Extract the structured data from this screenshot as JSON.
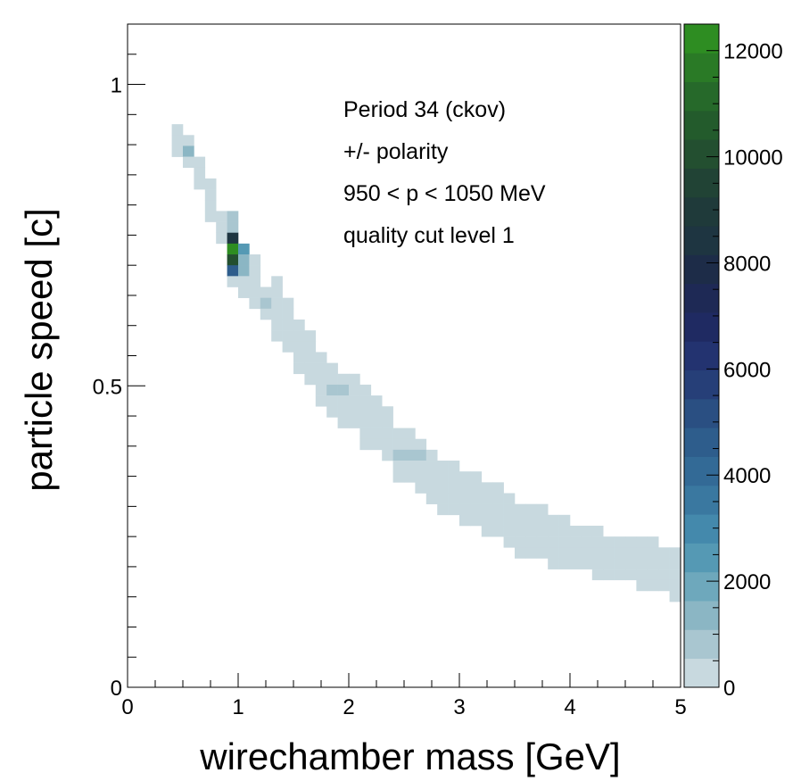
{
  "chart_data": {
    "type": "heatmap",
    "xlabel": "wirechamber mass [GeV]",
    "ylabel": "particle speed [c]",
    "xlim": [
      0,
      5
    ],
    "ylim": [
      0,
      1.1
    ],
    "x_ticks": [
      "0",
      "1",
      "2",
      "3",
      "4",
      "5"
    ],
    "y_ticks": [
      "0",
      "0.5",
      "1"
    ],
    "colorbar": {
      "range": [
        0,
        12500
      ],
      "ticks": [
        "0",
        "2000",
        "4000",
        "6000",
        "8000",
        "10000",
        "12000"
      ],
      "colors": [
        "#c8d9df",
        "#a9c6d0",
        "#8bb6c4",
        "#6ea8bc",
        "#5599b4",
        "#4489ac",
        "#3a78a0",
        "#336a96",
        "#2e5d8c",
        "#2a4f82",
        "#263f78",
        "#233370",
        "#1f2a62",
        "#1e2955",
        "#1d2c48",
        "#1e3541",
        "#1f3a3a",
        "#214335",
        "#234f30",
        "#235b2c",
        "#26692a",
        "#2a7a26",
        "#2e8d22"
      ]
    },
    "annotations": [
      "Period 34 (ckov)",
      "+/- polarity",
      "950 < p < 1050 MeV",
      "quality cut level 1"
    ],
    "bin_size": {
      "mass_GeV": 0.1,
      "speed_c": 0.018
    },
    "bins": [
      {
        "x": 0.45,
        "y": 0.925,
        "v": 250
      },
      {
        "x": 0.45,
        "y": 0.907,
        "v": 250
      },
      {
        "x": 0.45,
        "y": 0.889,
        "v": 250
      },
      {
        "x": 0.55,
        "y": 0.907,
        "v": 250
      },
      {
        "x": 0.55,
        "y": 0.889,
        "v": 1200
      },
      {
        "x": 0.55,
        "y": 0.871,
        "v": 250
      },
      {
        "x": 0.65,
        "y": 0.871,
        "v": 250
      },
      {
        "x": 0.65,
        "y": 0.853,
        "v": 250
      },
      {
        "x": 0.65,
        "y": 0.835,
        "v": 250
      },
      {
        "x": 0.75,
        "y": 0.835,
        "v": 250
      },
      {
        "x": 0.75,
        "y": 0.817,
        "v": 250
      },
      {
        "x": 0.75,
        "y": 0.799,
        "v": 250
      },
      {
        "x": 0.75,
        "y": 0.781,
        "v": 250
      },
      {
        "x": 0.85,
        "y": 0.781,
        "v": 250
      },
      {
        "x": 0.85,
        "y": 0.763,
        "v": 250
      },
      {
        "x": 0.85,
        "y": 0.745,
        "v": 250
      },
      {
        "x": 0.95,
        "y": 0.781,
        "v": 900
      },
      {
        "x": 0.95,
        "y": 0.763,
        "v": 900
      },
      {
        "x": 0.95,
        "y": 0.745,
        "v": 8600
      },
      {
        "x": 0.95,
        "y": 0.727,
        "v": 12400
      },
      {
        "x": 0.95,
        "y": 0.709,
        "v": 10300
      },
      {
        "x": 0.95,
        "y": 0.691,
        "v": 4500
      },
      {
        "x": 0.95,
        "y": 0.673,
        "v": 250
      },
      {
        "x": 1.05,
        "y": 0.727,
        "v": 2200
      },
      {
        "x": 1.05,
        "y": 0.709,
        "v": 1200
      },
      {
        "x": 1.05,
        "y": 0.691,
        "v": 1200
      },
      {
        "x": 1.05,
        "y": 0.673,
        "v": 250
      },
      {
        "x": 1.05,
        "y": 0.655,
        "v": 250
      },
      {
        "x": 1.15,
        "y": 0.709,
        "v": 250
      },
      {
        "x": 1.15,
        "y": 0.691,
        "v": 250
      },
      {
        "x": 1.15,
        "y": 0.673,
        "v": 250
      },
      {
        "x": 1.15,
        "y": 0.655,
        "v": 250
      },
      {
        "x": 1.15,
        "y": 0.637,
        "v": 250
      },
      {
        "x": 1.25,
        "y": 0.655,
        "v": 250
      },
      {
        "x": 1.25,
        "y": 0.637,
        "v": 900
      },
      {
        "x": 1.25,
        "y": 0.619,
        "v": 250
      },
      {
        "x": 1.35,
        "y": 0.673,
        "v": 250
      },
      {
        "x": 1.35,
        "y": 0.655,
        "v": 250
      },
      {
        "x": 1.35,
        "y": 0.637,
        "v": 250
      },
      {
        "x": 1.35,
        "y": 0.619,
        "v": 250
      },
      {
        "x": 1.35,
        "y": 0.601,
        "v": 250
      },
      {
        "x": 1.35,
        "y": 0.583,
        "v": 250
      },
      {
        "x": 1.45,
        "y": 0.637,
        "v": 250
      },
      {
        "x": 1.45,
        "y": 0.619,
        "v": 250
      },
      {
        "x": 1.45,
        "y": 0.601,
        "v": 250
      },
      {
        "x": 1.45,
        "y": 0.583,
        "v": 250
      },
      {
        "x": 1.45,
        "y": 0.565,
        "v": 250
      },
      {
        "x": 1.55,
        "y": 0.601,
        "v": 250
      },
      {
        "x": 1.55,
        "y": 0.583,
        "v": 250
      },
      {
        "x": 1.55,
        "y": 0.565,
        "v": 250
      },
      {
        "x": 1.55,
        "y": 0.547,
        "v": 250
      },
      {
        "x": 1.55,
        "y": 0.529,
        "v": 250
      },
      {
        "x": 1.65,
        "y": 0.583,
        "v": 250
      },
      {
        "x": 1.65,
        "y": 0.565,
        "v": 250
      },
      {
        "x": 1.65,
        "y": 0.547,
        "v": 250
      },
      {
        "x": 1.65,
        "y": 0.529,
        "v": 250
      },
      {
        "x": 1.65,
        "y": 0.511,
        "v": 250
      },
      {
        "x": 1.75,
        "y": 0.547,
        "v": 250
      },
      {
        "x": 1.75,
        "y": 0.529,
        "v": 250
      },
      {
        "x": 1.75,
        "y": 0.511,
        "v": 250
      },
      {
        "x": 1.75,
        "y": 0.493,
        "v": 250
      },
      {
        "x": 1.75,
        "y": 0.475,
        "v": 250
      },
      {
        "x": 1.85,
        "y": 0.529,
        "v": 250
      },
      {
        "x": 1.85,
        "y": 0.511,
        "v": 250
      },
      {
        "x": 1.85,
        "y": 0.493,
        "v": 900
      },
      {
        "x": 1.85,
        "y": 0.475,
        "v": 250
      },
      {
        "x": 1.85,
        "y": 0.457,
        "v": 250
      },
      {
        "x": 1.95,
        "y": 0.511,
        "v": 250
      },
      {
        "x": 1.95,
        "y": 0.493,
        "v": 900
      },
      {
        "x": 1.95,
        "y": 0.475,
        "v": 250
      },
      {
        "x": 1.95,
        "y": 0.457,
        "v": 250
      },
      {
        "x": 1.95,
        "y": 0.439,
        "v": 250
      },
      {
        "x": 2.05,
        "y": 0.511,
        "v": 250
      },
      {
        "x": 2.05,
        "y": 0.493,
        "v": 250
      },
      {
        "x": 2.05,
        "y": 0.475,
        "v": 250
      },
      {
        "x": 2.05,
        "y": 0.457,
        "v": 250
      },
      {
        "x": 2.05,
        "y": 0.439,
        "v": 250
      },
      {
        "x": 2.15,
        "y": 0.493,
        "v": 250
      },
      {
        "x": 2.15,
        "y": 0.475,
        "v": 250
      },
      {
        "x": 2.15,
        "y": 0.457,
        "v": 250
      },
      {
        "x": 2.15,
        "y": 0.439,
        "v": 250
      },
      {
        "x": 2.15,
        "y": 0.421,
        "v": 250
      },
      {
        "x": 2.15,
        "y": 0.403,
        "v": 250
      },
      {
        "x": 2.25,
        "y": 0.475,
        "v": 250
      },
      {
        "x": 2.25,
        "y": 0.457,
        "v": 250
      },
      {
        "x": 2.25,
        "y": 0.439,
        "v": 250
      },
      {
        "x": 2.25,
        "y": 0.421,
        "v": 250
      },
      {
        "x": 2.25,
        "y": 0.403,
        "v": 250
      },
      {
        "x": 2.35,
        "y": 0.457,
        "v": 250
      },
      {
        "x": 2.35,
        "y": 0.439,
        "v": 250
      },
      {
        "x": 2.35,
        "y": 0.421,
        "v": 250
      },
      {
        "x": 2.35,
        "y": 0.403,
        "v": 250
      },
      {
        "x": 2.35,
        "y": 0.385,
        "v": 250
      },
      {
        "x": 2.45,
        "y": 0.421,
        "v": 250
      },
      {
        "x": 2.45,
        "y": 0.403,
        "v": 250
      },
      {
        "x": 2.45,
        "y": 0.385,
        "v": 900
      },
      {
        "x": 2.45,
        "y": 0.367,
        "v": 250
      },
      {
        "x": 2.45,
        "y": 0.349,
        "v": 250
      },
      {
        "x": 2.55,
        "y": 0.421,
        "v": 250
      },
      {
        "x": 2.55,
        "y": 0.403,
        "v": 250
      },
      {
        "x": 2.55,
        "y": 0.385,
        "v": 900
      },
      {
        "x": 2.55,
        "y": 0.367,
        "v": 250
      },
      {
        "x": 2.55,
        "y": 0.349,
        "v": 250
      },
      {
        "x": 2.65,
        "y": 0.403,
        "v": 250
      },
      {
        "x": 2.65,
        "y": 0.385,
        "v": 900
      },
      {
        "x": 2.65,
        "y": 0.367,
        "v": 250
      },
      {
        "x": 2.65,
        "y": 0.349,
        "v": 250
      },
      {
        "x": 2.65,
        "y": 0.331,
        "v": 250
      },
      {
        "x": 2.75,
        "y": 0.385,
        "v": 250
      },
      {
        "x": 2.75,
        "y": 0.367,
        "v": 250
      },
      {
        "x": 2.75,
        "y": 0.349,
        "v": 250
      },
      {
        "x": 2.75,
        "y": 0.331,
        "v": 250
      },
      {
        "x": 2.75,
        "y": 0.313,
        "v": 250
      },
      {
        "x": 2.85,
        "y": 0.367,
        "v": 250
      },
      {
        "x": 2.85,
        "y": 0.349,
        "v": 250
      },
      {
        "x": 2.85,
        "y": 0.331,
        "v": 250
      },
      {
        "x": 2.85,
        "y": 0.313,
        "v": 250
      },
      {
        "x": 2.85,
        "y": 0.295,
        "v": 250
      },
      {
        "x": 2.95,
        "y": 0.367,
        "v": 250
      },
      {
        "x": 2.95,
        "y": 0.349,
        "v": 250
      },
      {
        "x": 2.95,
        "y": 0.331,
        "v": 250
      },
      {
        "x": 2.95,
        "y": 0.313,
        "v": 250
      },
      {
        "x": 2.95,
        "y": 0.295,
        "v": 250
      },
      {
        "x": 3.05,
        "y": 0.349,
        "v": 250
      },
      {
        "x": 3.05,
        "y": 0.331,
        "v": 250
      },
      {
        "x": 3.05,
        "y": 0.313,
        "v": 250
      },
      {
        "x": 3.05,
        "y": 0.295,
        "v": 250
      },
      {
        "x": 3.05,
        "y": 0.277,
        "v": 250
      },
      {
        "x": 3.15,
        "y": 0.349,
        "v": 250
      },
      {
        "x": 3.15,
        "y": 0.331,
        "v": 250
      },
      {
        "x": 3.15,
        "y": 0.313,
        "v": 250
      },
      {
        "x": 3.15,
        "y": 0.295,
        "v": 250
      },
      {
        "x": 3.15,
        "y": 0.277,
        "v": 250
      },
      {
        "x": 3.25,
        "y": 0.331,
        "v": 250
      },
      {
        "x": 3.25,
        "y": 0.313,
        "v": 250
      },
      {
        "x": 3.25,
        "y": 0.295,
        "v": 250
      },
      {
        "x": 3.25,
        "y": 0.277,
        "v": 250
      },
      {
        "x": 3.25,
        "y": 0.259,
        "v": 250
      },
      {
        "x": 3.35,
        "y": 0.331,
        "v": 250
      },
      {
        "x": 3.35,
        "y": 0.313,
        "v": 250
      },
      {
        "x": 3.35,
        "y": 0.295,
        "v": 250
      },
      {
        "x": 3.35,
        "y": 0.277,
        "v": 250
      },
      {
        "x": 3.35,
        "y": 0.259,
        "v": 250
      },
      {
        "x": 3.45,
        "y": 0.313,
        "v": 250
      },
      {
        "x": 3.45,
        "y": 0.295,
        "v": 250
      },
      {
        "x": 3.45,
        "y": 0.277,
        "v": 250
      },
      {
        "x": 3.45,
        "y": 0.259,
        "v": 250
      },
      {
        "x": 3.45,
        "y": 0.241,
        "v": 250
      },
      {
        "x": 3.55,
        "y": 0.295,
        "v": 250
      },
      {
        "x": 3.55,
        "y": 0.277,
        "v": 250
      },
      {
        "x": 3.55,
        "y": 0.259,
        "v": 250
      },
      {
        "x": 3.55,
        "y": 0.241,
        "v": 250
      },
      {
        "x": 3.55,
        "y": 0.223,
        "v": 250
      },
      {
        "x": 3.65,
        "y": 0.295,
        "v": 250
      },
      {
        "x": 3.65,
        "y": 0.277,
        "v": 250
      },
      {
        "x": 3.65,
        "y": 0.259,
        "v": 250
      },
      {
        "x": 3.65,
        "y": 0.241,
        "v": 250
      },
      {
        "x": 3.65,
        "y": 0.223,
        "v": 250
      },
      {
        "x": 3.75,
        "y": 0.295,
        "v": 250
      },
      {
        "x": 3.75,
        "y": 0.277,
        "v": 250
      },
      {
        "x": 3.75,
        "y": 0.259,
        "v": 250
      },
      {
        "x": 3.75,
        "y": 0.241,
        "v": 250
      },
      {
        "x": 3.75,
        "y": 0.223,
        "v": 250
      },
      {
        "x": 3.85,
        "y": 0.277,
        "v": 250
      },
      {
        "x": 3.85,
        "y": 0.259,
        "v": 250
      },
      {
        "x": 3.85,
        "y": 0.241,
        "v": 250
      },
      {
        "x": 3.85,
        "y": 0.223,
        "v": 250
      },
      {
        "x": 3.85,
        "y": 0.205,
        "v": 250
      },
      {
        "x": 3.95,
        "y": 0.277,
        "v": 250
      },
      {
        "x": 3.95,
        "y": 0.259,
        "v": 250
      },
      {
        "x": 3.95,
        "y": 0.241,
        "v": 250
      },
      {
        "x": 3.95,
        "y": 0.223,
        "v": 250
      },
      {
        "x": 3.95,
        "y": 0.205,
        "v": 250
      },
      {
        "x": 4.05,
        "y": 0.259,
        "v": 250
      },
      {
        "x": 4.05,
        "y": 0.241,
        "v": 250
      },
      {
        "x": 4.05,
        "y": 0.223,
        "v": 250
      },
      {
        "x": 4.05,
        "y": 0.205,
        "v": 250
      },
      {
        "x": 4.15,
        "y": 0.259,
        "v": 250
      },
      {
        "x": 4.15,
        "y": 0.241,
        "v": 250
      },
      {
        "x": 4.15,
        "y": 0.223,
        "v": 250
      },
      {
        "x": 4.15,
        "y": 0.205,
        "v": 250
      },
      {
        "x": 4.25,
        "y": 0.259,
        "v": 250
      },
      {
        "x": 4.25,
        "y": 0.241,
        "v": 250
      },
      {
        "x": 4.25,
        "y": 0.223,
        "v": 250
      },
      {
        "x": 4.25,
        "y": 0.205,
        "v": 250
      },
      {
        "x": 4.25,
        "y": 0.187,
        "v": 250
      },
      {
        "x": 4.35,
        "y": 0.241,
        "v": 250
      },
      {
        "x": 4.35,
        "y": 0.223,
        "v": 250
      },
      {
        "x": 4.35,
        "y": 0.205,
        "v": 250
      },
      {
        "x": 4.35,
        "y": 0.187,
        "v": 250
      },
      {
        "x": 4.45,
        "y": 0.241,
        "v": 250
      },
      {
        "x": 4.45,
        "y": 0.223,
        "v": 250
      },
      {
        "x": 4.45,
        "y": 0.205,
        "v": 250
      },
      {
        "x": 4.45,
        "y": 0.187,
        "v": 250
      },
      {
        "x": 4.55,
        "y": 0.241,
        "v": 250
      },
      {
        "x": 4.55,
        "y": 0.223,
        "v": 250
      },
      {
        "x": 4.55,
        "y": 0.205,
        "v": 250
      },
      {
        "x": 4.55,
        "y": 0.187,
        "v": 250
      },
      {
        "x": 4.65,
        "y": 0.241,
        "v": 250
      },
      {
        "x": 4.65,
        "y": 0.223,
        "v": 250
      },
      {
        "x": 4.65,
        "y": 0.205,
        "v": 250
      },
      {
        "x": 4.65,
        "y": 0.187,
        "v": 250
      },
      {
        "x": 4.65,
        "y": 0.169,
        "v": 250
      },
      {
        "x": 4.75,
        "y": 0.241,
        "v": 250
      },
      {
        "x": 4.75,
        "y": 0.223,
        "v": 250
      },
      {
        "x": 4.75,
        "y": 0.205,
        "v": 250
      },
      {
        "x": 4.75,
        "y": 0.187,
        "v": 250
      },
      {
        "x": 4.75,
        "y": 0.169,
        "v": 250
      },
      {
        "x": 4.85,
        "y": 0.223,
        "v": 250
      },
      {
        "x": 4.85,
        "y": 0.205,
        "v": 250
      },
      {
        "x": 4.85,
        "y": 0.187,
        "v": 250
      },
      {
        "x": 4.85,
        "y": 0.169,
        "v": 250
      },
      {
        "x": 4.95,
        "y": 0.223,
        "v": 250
      },
      {
        "x": 4.95,
        "y": 0.205,
        "v": 250
      },
      {
        "x": 4.95,
        "y": 0.187,
        "v": 250
      },
      {
        "x": 4.95,
        "y": 0.169,
        "v": 250
      },
      {
        "x": 4.95,
        "y": 0.151,
        "v": 250
      }
    ]
  }
}
